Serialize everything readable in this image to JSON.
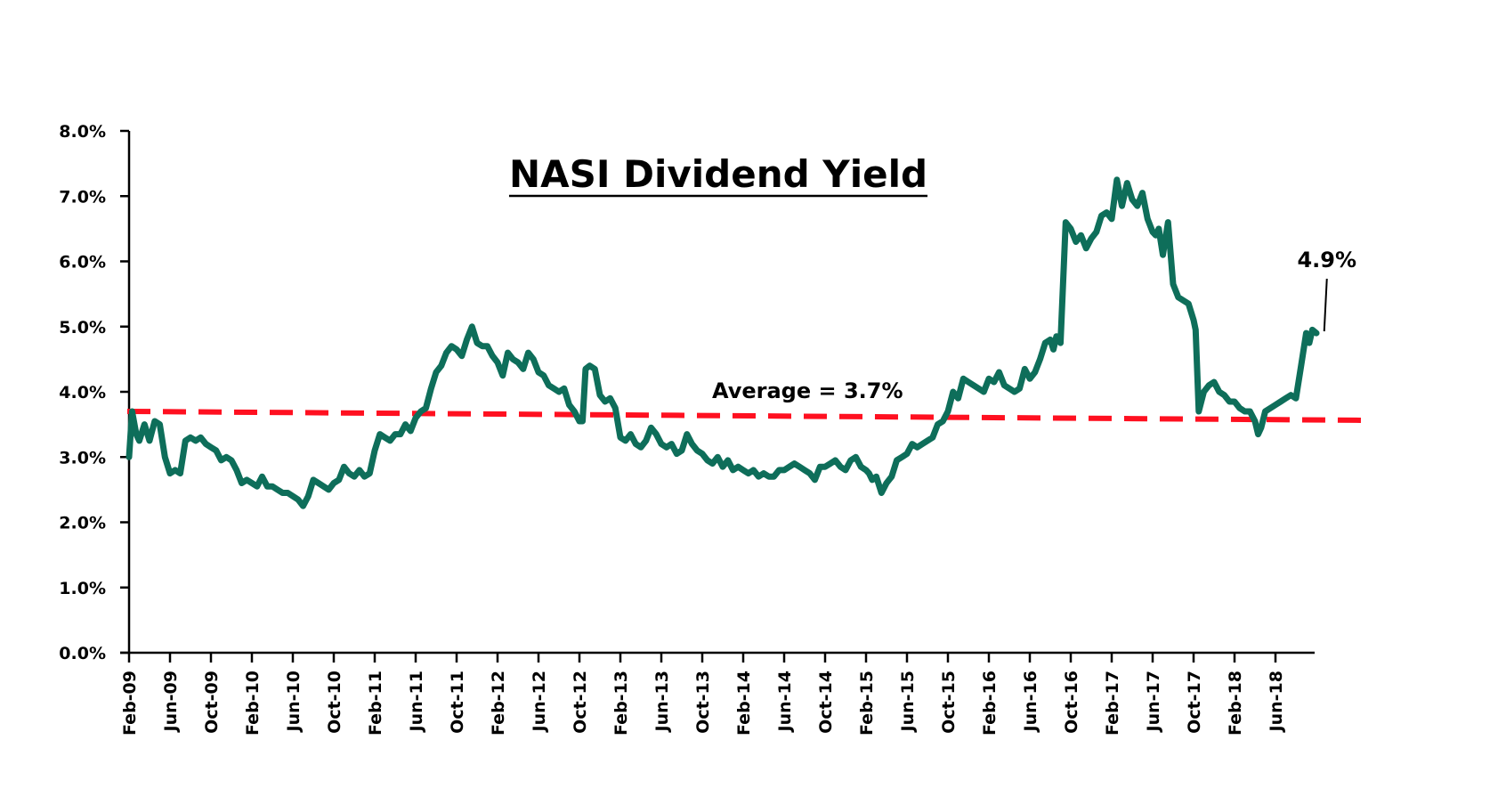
{
  "chart_data": {
    "type": "line",
    "title": "NASI Dividend Yield",
    "xlabel": "",
    "ylabel": "",
    "ylim": [
      0,
      8
    ],
    "y_ticks": [
      "0.0%",
      "1.0%",
      "2.0%",
      "3.0%",
      "4.0%",
      "5.0%",
      "6.0%",
      "7.0%",
      "8.0%"
    ],
    "y_tick_values": [
      0,
      1,
      2,
      3,
      4,
      5,
      6,
      7,
      8
    ],
    "x_ticks": [
      "Feb-09",
      "Jun-09",
      "Oct-09",
      "Feb-10",
      "Jun-10",
      "Oct-10",
      "Feb-11",
      "Jun-11",
      "Oct-11",
      "Feb-12",
      "Jun-12",
      "Oct-12",
      "Feb-13",
      "Jun-13",
      "Oct-13",
      "Feb-14",
      "Jun-14",
      "Oct-14",
      "Feb-15",
      "Jun-15",
      "Oct-15",
      "Feb-16",
      "Jun-16",
      "Oct-16",
      "Feb-17",
      "Jun-17",
      "Oct-17",
      "Feb-18",
      "Jun-18"
    ],
    "x_tick_month_index": [
      0,
      4,
      8,
      12,
      16,
      20,
      24,
      28,
      32,
      36,
      40,
      44,
      48,
      52,
      56,
      60,
      64,
      68,
      72,
      76,
      80,
      84,
      88,
      92,
      96,
      100,
      104,
      108,
      112
    ],
    "grid": false,
    "legend": "none",
    "series": [
      {
        "name": "NASI Dividend Yield",
        "color": "#0e6e5a",
        "unit": "%",
        "x_month_index": [
          0,
          0.3,
          0.7,
          1,
          1.5,
          2,
          2.5,
          3,
          3.5,
          4,
          4.5,
          5,
          5.5,
          6,
          6.5,
          7,
          7.5,
          8,
          8.5,
          9,
          9.5,
          10,
          10.5,
          11,
          11.5,
          12,
          12.5,
          13,
          13.5,
          14,
          14.5,
          15,
          15.5,
          16,
          16.5,
          17,
          17.5,
          18,
          18.5,
          19,
          19.5,
          20,
          20.5,
          21,
          21.5,
          22,
          22.5,
          23,
          23.5,
          24,
          24.5,
          25,
          25.5,
          26,
          26.5,
          27,
          27.5,
          28,
          28.5,
          29,
          29.5,
          30,
          30.5,
          31,
          31.5,
          32,
          32.5,
          33,
          33.5,
          34,
          34.5,
          35,
          35.5,
          36,
          36.5,
          37,
          37.5,
          38,
          38.5,
          39,
          39.5,
          40,
          40.5,
          41,
          41.5,
          42,
          42.5,
          43,
          43.5,
          44,
          44.3,
          44.6,
          45,
          45.5,
          46,
          46.5,
          47,
          47.5,
          48,
          48.5,
          49,
          49.5,
          50,
          50.5,
          51,
          51.5,
          52,
          52.5,
          53,
          53.5,
          54,
          54.5,
          55,
          55.5,
          56,
          56.5,
          57,
          57.5,
          58,
          58.5,
          59,
          59.5,
          60,
          60.5,
          61,
          61.5,
          62,
          62.5,
          63,
          63.5,
          64,
          64.5,
          65,
          65.5,
          66,
          66.5,
          67,
          67.5,
          68,
          68.5,
          69,
          69.5,
          70,
          70.5,
          71,
          71.5,
          72,
          72.3,
          72.6,
          73,
          73.5,
          74,
          74.5,
          75,
          75.5,
          76,
          76.5,
          77,
          77.5,
          78,
          78.5,
          79,
          79.5,
          80,
          80.5,
          81,
          81.5,
          82,
          82.5,
          83,
          83.5,
          84,
          84.5,
          85,
          85.5,
          86,
          86.5,
          87,
          87.5,
          88,
          88.5,
          89,
          89.5,
          90,
          90.3,
          90.6,
          91,
          91.5,
          92,
          92.5,
          93,
          93.5,
          94,
          94.5,
          95,
          95.5,
          96,
          96.5,
          97,
          97.5,
          98,
          98.5,
          99,
          99.5,
          100,
          100.3,
          100.6,
          101,
          101.5,
          102,
          102.5,
          103,
          103.5,
          104,
          104.2,
          104.5,
          105,
          105.5,
          106,
          106.5,
          107,
          107.5,
          108,
          108.5,
          109,
          109.5,
          110,
          110.3,
          110.6,
          111,
          111.5,
          112,
          112.5,
          113,
          113.5,
          114,
          114.5,
          115,
          115.3,
          115.6,
          116,
          116.5
        ],
        "values": [
          3.0,
          3.7,
          3.35,
          3.25,
          3.5,
          3.25,
          3.55,
          3.5,
          3.0,
          2.75,
          2.8,
          2.75,
          3.25,
          3.3,
          3.25,
          3.3,
          3.2,
          3.15,
          3.1,
          2.95,
          3.0,
          2.95,
          2.8,
          2.6,
          2.65,
          2.6,
          2.55,
          2.7,
          2.55,
          2.55,
          2.5,
          2.45,
          2.45,
          2.4,
          2.35,
          2.25,
          2.4,
          2.65,
          2.6,
          2.55,
          2.5,
          2.6,
          2.65,
          2.85,
          2.75,
          2.7,
          2.8,
          2.7,
          2.75,
          3.1,
          3.35,
          3.3,
          3.25,
          3.35,
          3.35,
          3.5,
          3.4,
          3.6,
          3.7,
          3.75,
          4.05,
          4.3,
          4.4,
          4.6,
          4.7,
          4.65,
          4.55,
          4.8,
          5.0,
          4.75,
          4.7,
          4.7,
          4.55,
          4.45,
          4.25,
          4.6,
          4.5,
          4.45,
          4.35,
          4.6,
          4.5,
          4.3,
          4.25,
          4.1,
          4.05,
          4.0,
          4.05,
          3.8,
          3.7,
          3.55,
          3.55,
          4.35,
          4.4,
          4.35,
          3.95,
          3.85,
          3.9,
          3.75,
          3.3,
          3.25,
          3.35,
          3.2,
          3.15,
          3.25,
          3.45,
          3.35,
          3.2,
          3.15,
          3.2,
          3.05,
          3.1,
          3.35,
          3.2,
          3.1,
          3.05,
          2.95,
          2.9,
          3.0,
          2.85,
          2.95,
          2.8,
          2.85,
          2.8,
          2.75,
          2.8,
          2.7,
          2.75,
          2.7,
          2.7,
          2.8,
          2.8,
          2.85,
          2.9,
          2.85,
          2.8,
          2.75,
          2.65,
          2.85,
          2.85,
          2.9,
          2.95,
          2.85,
          2.8,
          2.95,
          3.0,
          2.85,
          2.8,
          2.75,
          2.65,
          2.7,
          2.45,
          2.6,
          2.7,
          2.95,
          3.0,
          3.05,
          3.2,
          3.15,
          3.2,
          3.25,
          3.3,
          3.5,
          3.55,
          3.7,
          4.0,
          3.9,
          4.2,
          4.15,
          4.1,
          4.05,
          4.0,
          4.2,
          4.15,
          4.3,
          4.1,
          4.05,
          4.0,
          4.05,
          4.35,
          4.2,
          4.3,
          4.5,
          4.75,
          4.8,
          4.65,
          4.85,
          4.75,
          6.6,
          6.5,
          6.3,
          6.4,
          6.2,
          6.35,
          6.45,
          6.7,
          6.75,
          6.65,
          7.25,
          6.85,
          7.2,
          6.95,
          6.85,
          7.05,
          6.65,
          6.45,
          6.4,
          6.5,
          6.1,
          6.6,
          5.65,
          5.45,
          5.4,
          5.35,
          5.1,
          4.95,
          3.7,
          4.0,
          4.1,
          4.15,
          4.0,
          3.95,
          3.85,
          3.85,
          3.75,
          3.7,
          3.7,
          3.55,
          3.35,
          3.45,
          3.7,
          3.75,
          3.8,
          3.85,
          3.9,
          3.95,
          3.9,
          4.4,
          4.9,
          4.75,
          4.95,
          4.9
        ]
      }
    ],
    "average": {
      "value": 3.7,
      "label": "Average = 3.7%",
      "color": "#ff1020",
      "style": "dashed"
    },
    "annotations": [
      {
        "text": "4.9%",
        "points_to": "last-value",
        "value": 4.9
      }
    ]
  }
}
